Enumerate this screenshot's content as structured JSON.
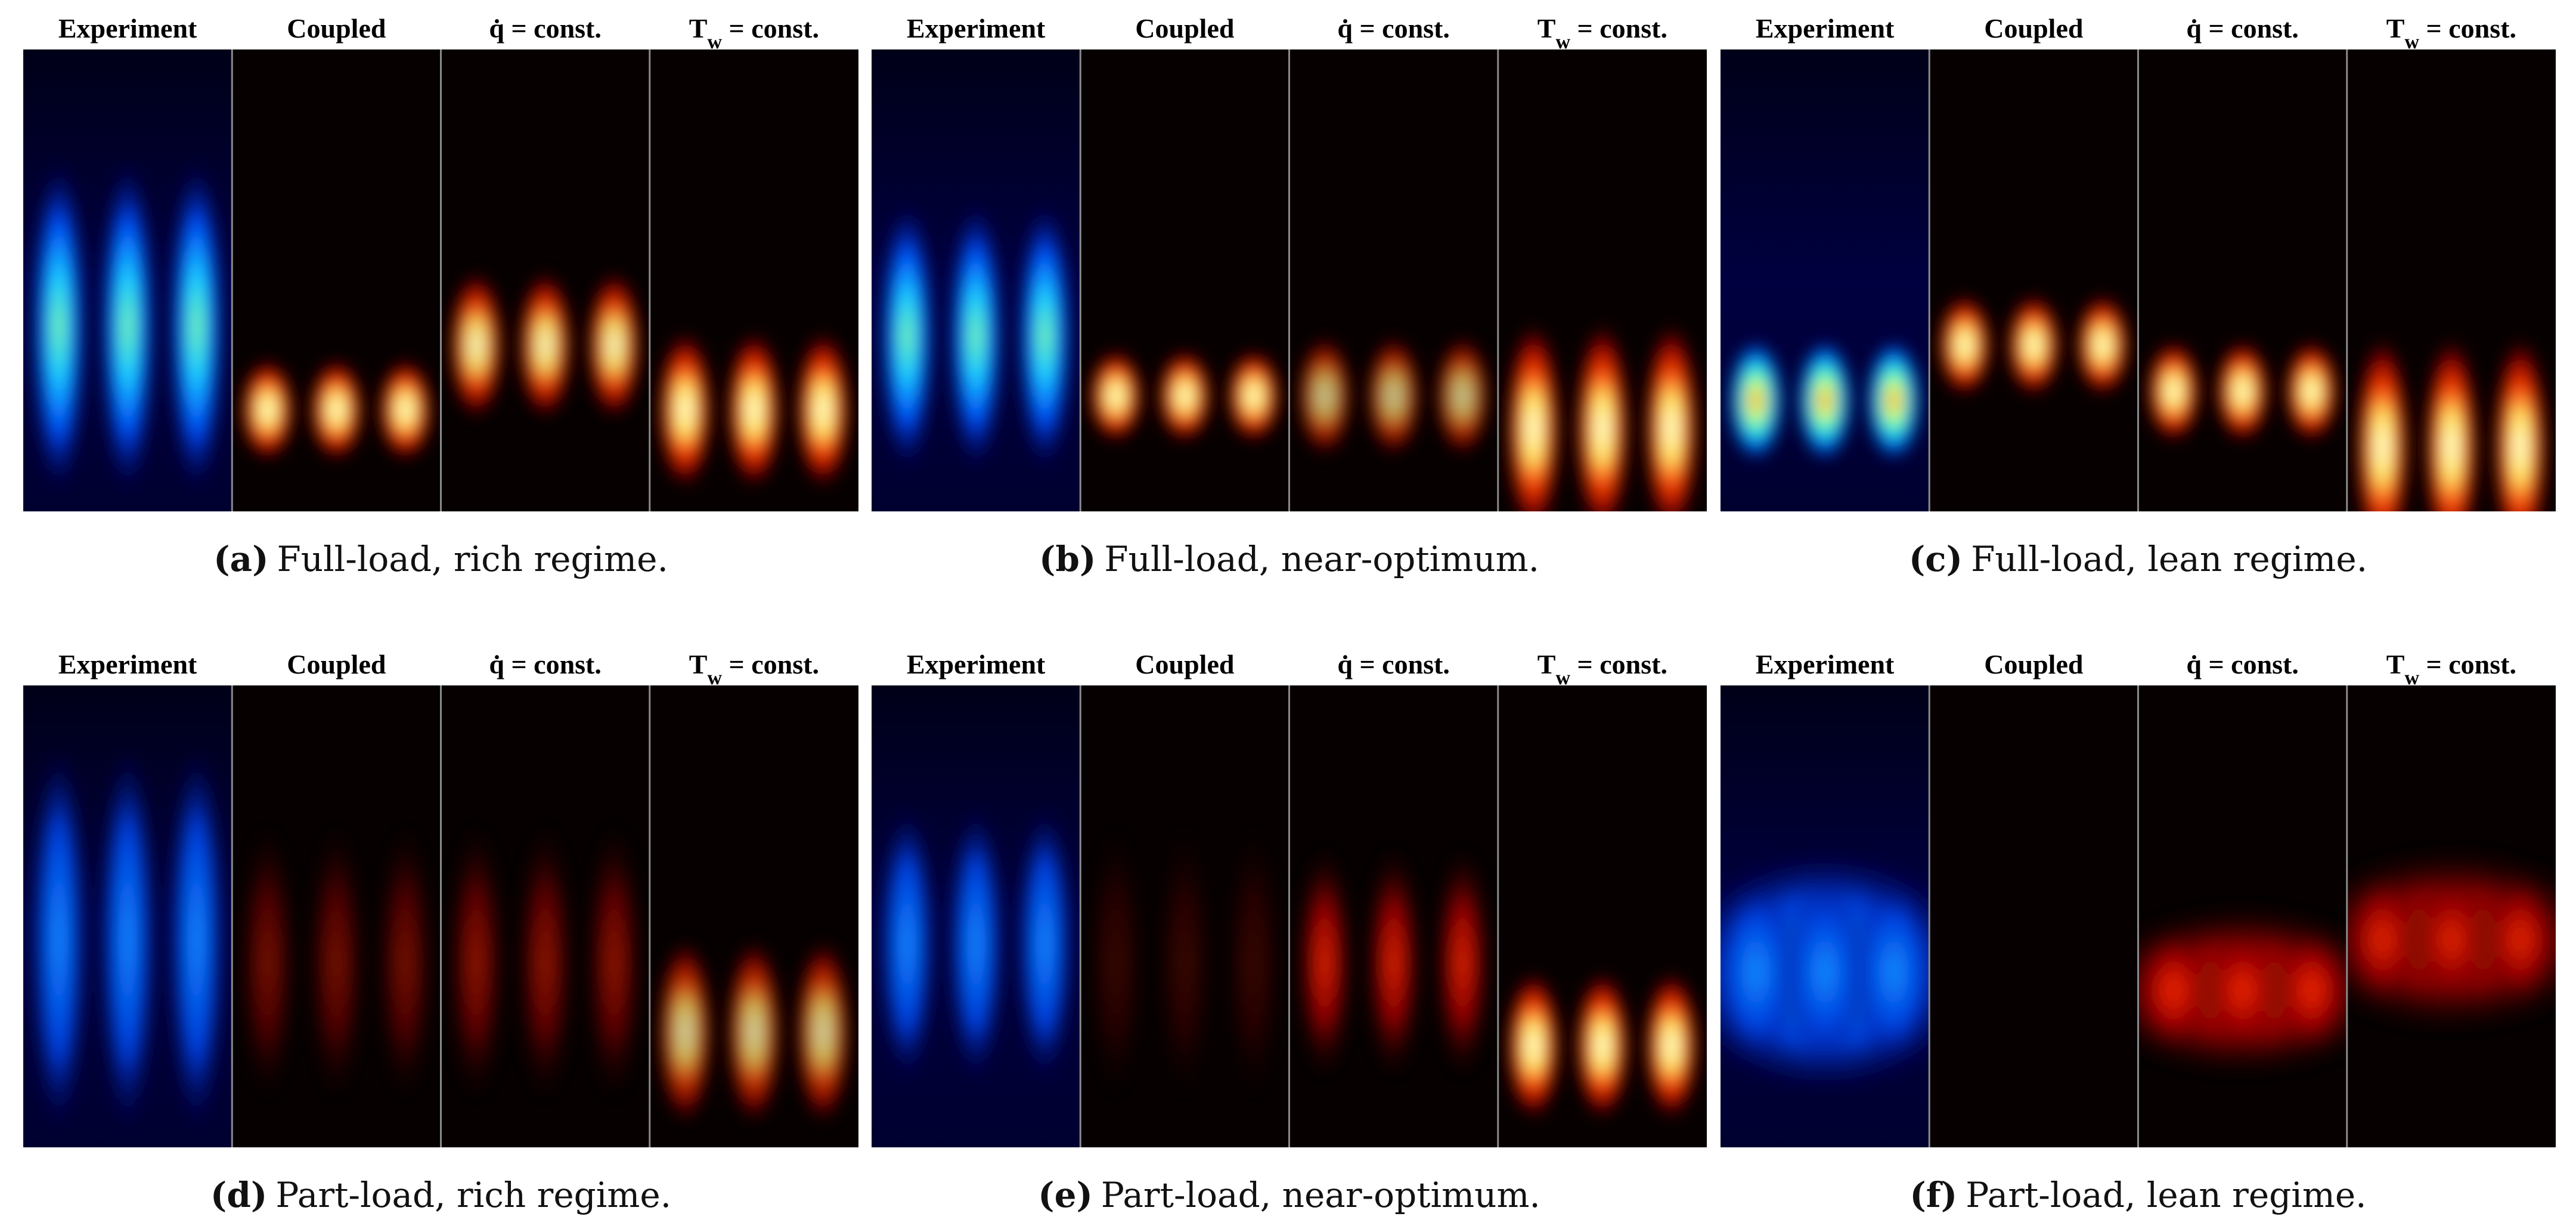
{
  "panels": [
    {
      "columns": [
        {
          "text": "Experiment"
        },
        {
          "text": "Coupled"
        },
        {
          "text": "q̇ = const."
        },
        {
          "text": "T",
          "sub": "w",
          "after": " = const."
        }
      ],
      "label": "(a)",
      "caption": "Full-load, rich regime."
    },
    {
      "columns": [
        {
          "text": "Experiment"
        },
        {
          "text": "Coupled"
        },
        {
          "text": "q̇ = const."
        },
        {
          "text": "T",
          "sub": "w",
          "after": " = const."
        }
      ],
      "label": "(b)",
      "caption": "Full-load, near-optimum."
    },
    {
      "columns": [
        {
          "text": "Experiment"
        },
        {
          "text": "Coupled"
        },
        {
          "text": "q̇ = const."
        },
        {
          "text": "T",
          "sub": "w",
          "after": " = const."
        }
      ],
      "label": "(c)",
      "caption": "Full-load, lean regime."
    },
    {
      "columns": [
        {
          "text": "Experiment"
        },
        {
          "text": "Coupled"
        },
        {
          "text": "q̇ = const."
        },
        {
          "text": "T",
          "sub": "w",
          "after": " = const."
        }
      ],
      "label": "(d)",
      "caption": "Part-load, rich regime."
    },
    {
      "columns": [
        {
          "text": "Experiment"
        },
        {
          "text": "Coupled"
        },
        {
          "text": "q̇ = const."
        },
        {
          "text": "T",
          "sub": "w",
          "after": " = const."
        }
      ],
      "label": "(e)",
      "caption": "Part-load, near-optimum."
    },
    {
      "columns": [
        {
          "text": "Experiment"
        },
        {
          "text": "Coupled"
        },
        {
          "text": "q̇ = const."
        },
        {
          "text": "T",
          "sub": "w",
          "after": " = const."
        }
      ],
      "label": "(f)",
      "caption": "Part-load, lean regime."
    }
  ]
}
